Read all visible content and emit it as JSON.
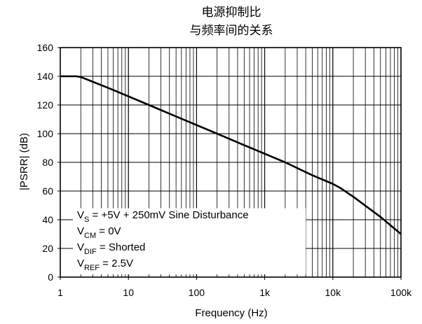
{
  "chart_data": {
    "type": "line",
    "title_lines": [
      "电源抑制比",
      "与频率间的关系"
    ],
    "xlabel": "Frequency (Hz)",
    "ylabel": "|PSRR| (dB)",
    "x_scale": "log",
    "xlim": [
      1,
      100000
    ],
    "ylim": [
      0,
      160
    ],
    "x_ticks": [
      1,
      10,
      100,
      1000,
      10000,
      100000
    ],
    "x_tick_labels": [
      "1",
      "10",
      "100",
      "1k",
      "10k",
      "100k"
    ],
    "y_ticks": [
      0,
      20,
      40,
      60,
      80,
      100,
      120,
      140,
      160
    ],
    "y_tick_labels": [
      "0",
      "20",
      "40",
      "60",
      "80",
      "100",
      "120",
      "140",
      "160"
    ],
    "grid": true,
    "series": [
      {
        "x": [
          1,
          1.7,
          2,
          5,
          10,
          20,
          50,
          100,
          200,
          500,
          1000,
          2000,
          5000,
          10000,
          13000,
          20000,
          50000,
          100000
        ],
        "y": [
          140,
          140,
          139.5,
          132,
          126,
          120,
          112,
          106,
          100,
          92,
          86,
          80,
          71,
          65,
          62,
          56,
          42,
          30
        ]
      }
    ],
    "annotations": [
      {
        "main": "V",
        "sub": "S",
        "rest": " = +5V + 250mV Sine Disturbance"
      },
      {
        "main": "V",
        "sub": "CM",
        "rest": " = 0V"
      },
      {
        "main": "V",
        "sub": "DIF",
        "rest": " = Shorted"
      },
      {
        "main": "V",
        "sub": "REF",
        "rest": " = 2.5V"
      }
    ]
  }
}
